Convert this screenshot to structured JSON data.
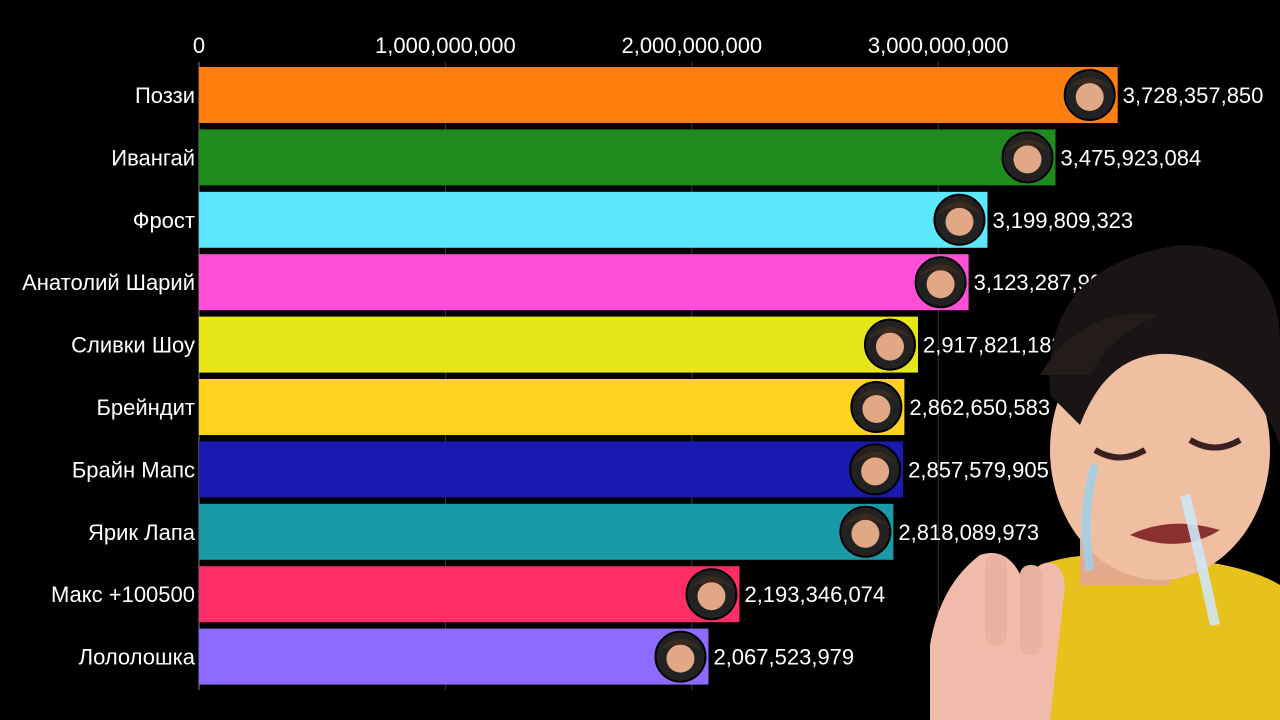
{
  "chart_data": {
    "type": "bar",
    "orientation": "horizontal",
    "categories": [
      "Поззи",
      "Ивангай",
      "Фрост",
      "Анатолий Шарий",
      "Сливки Шоу",
      "Брейндит",
      "Брайн Мапс",
      "Ярик Лапа",
      "Макс +100500",
      "Лололошка"
    ],
    "values": [
      3728357850,
      3475923084,
      3199809323,
      3123287904,
      2917821183,
      2862650583,
      2857579905,
      2818089973,
      2193346074,
      2067523979
    ],
    "value_labels": [
      "3,728,357,850",
      "3,475,923,084",
      "3,199,809,323",
      "3,123,287,904",
      "2,917,821,183",
      "2,862,650,583",
      "2,857,579,905",
      "2,818,089,973",
      "2,193,346,074",
      "2,067,523,979"
    ],
    "colors": [
      "#FF7F0E",
      "#1F8B1F",
      "#5CE8FF",
      "#FF4FD8",
      "#E6E61A",
      "#FFD21F",
      "#1A1AB0",
      "#1A9AA6",
      "#FF2E66",
      "#8E6BFF"
    ],
    "x_ticks": [
      0,
      1000000000,
      2000000000,
      3000000000
    ],
    "x_tick_labels": [
      "0",
      "1,000,000,000",
      "2,000,000,000",
      "3,000,000,000"
    ],
    "xlim": [
      0,
      3900000000
    ],
    "grid": true,
    "title": "",
    "xlabel": "",
    "ylabel": ""
  },
  "overlay": {
    "icon": "crying-person-image",
    "avatar_icons": [
      "avatar-icon"
    ]
  }
}
